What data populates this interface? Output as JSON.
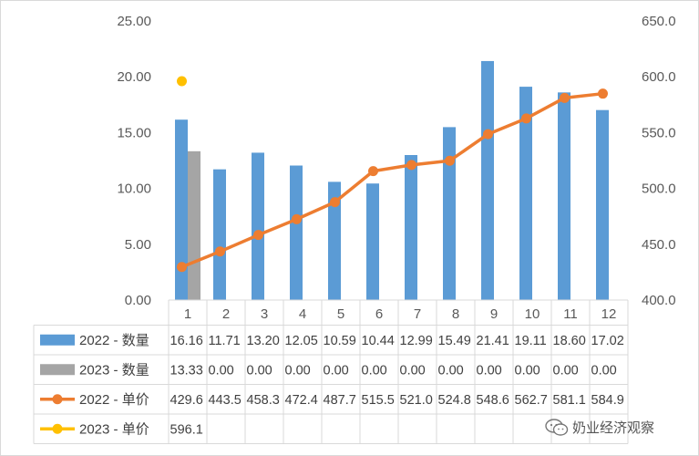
{
  "chart_data": {
    "type": "bar+line",
    "categories": [
      "1",
      "2",
      "3",
      "4",
      "5",
      "6",
      "7",
      "8",
      "9",
      "10",
      "11",
      "12"
    ],
    "bar_axis": {
      "ylim": [
        0,
        25
      ],
      "ticks": [
        "0.00",
        "5.00",
        "10.00",
        "15.00",
        "20.00",
        "25.00"
      ]
    },
    "line_axis": {
      "ylim": [
        400,
        650
      ],
      "ticks": [
        "400.0",
        "450.0",
        "500.0",
        "550.0",
        "600.0",
        "650.0"
      ]
    },
    "series": [
      {
        "name": "2022 - 数量",
        "kind": "bar",
        "axis": "left",
        "color": "#5B9BD5",
        "values": [
          16.16,
          11.71,
          13.2,
          12.05,
          10.59,
          10.44,
          12.99,
          15.49,
          21.41,
          19.11,
          18.6,
          17.02
        ],
        "labels": [
          "16.16",
          "11.71",
          "13.20",
          "12.05",
          "10.59",
          "10.44",
          "12.99",
          "15.49",
          "21.41",
          "19.11",
          "18.60",
          "17.02"
        ]
      },
      {
        "name": "2023 - 数量",
        "kind": "bar",
        "axis": "left",
        "color": "#A5A5A5",
        "values": [
          13.33,
          0,
          0,
          0,
          0,
          0,
          0,
          0,
          0,
          0,
          0,
          0
        ],
        "labels": [
          "13.33",
          "0.00",
          "0.00",
          "0.00",
          "0.00",
          "0.00",
          "0.00",
          "0.00",
          "0.00",
          "0.00",
          "0.00",
          "0.00"
        ]
      },
      {
        "name": "2022 - 单价",
        "kind": "line",
        "axis": "right",
        "color": "#ED7D31",
        "values": [
          429.6,
          443.5,
          458.3,
          472.4,
          487.7,
          515.5,
          521.0,
          524.8,
          548.6,
          562.7,
          581.1,
          584.9
        ],
        "labels": [
          "429.6",
          "443.5",
          "458.3",
          "472.4",
          "487.7",
          "515.5",
          "521.0",
          "524.8",
          "548.6",
          "562.7",
          "581.1",
          "584.9"
        ]
      },
      {
        "name": "2023 - 单价",
        "kind": "line",
        "axis": "right",
        "color": "#FFC000",
        "values": [
          596.1,
          null,
          null,
          null,
          null,
          null,
          null,
          null,
          null,
          null,
          null,
          null
        ],
        "labels": [
          "596.1",
          "",
          "",
          "",
          "",
          "",
          "",
          "",
          "",
          "",
          "",
          ""
        ]
      }
    ],
    "grid": false,
    "legend": "data-table"
  },
  "watermark": {
    "text": "奶业经济观察",
    "icon": "wechat-icon"
  }
}
